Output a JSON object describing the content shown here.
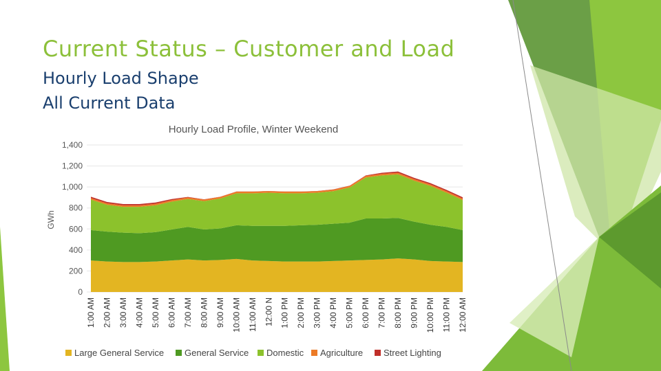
{
  "slide": {
    "title": "Current Status – Customer and Load",
    "subtitle_line1": "Hourly Load Shape",
    "subtitle_line2": "All Current Data"
  },
  "colors": {
    "title": "#8cc03a",
    "subtitle": "#1a3f6e",
    "accent_dark": "#3a7d1e",
    "accent_mid": "#6aa84f",
    "accent_light": "#8cc63f"
  },
  "chart_data": {
    "type": "area",
    "stacked": true,
    "title": "Hourly Load Profile, Winter Weekend",
    "ylabel": "GWh",
    "xlabel": "",
    "ylim": [
      0,
      1400
    ],
    "yticks": [
      "0",
      "200",
      "400",
      "600",
      "800",
      "1,000",
      "1,200",
      "1,400"
    ],
    "grid": true,
    "legend_position": "bottom",
    "categories": [
      "1:00 AM",
      "2:00 AM",
      "3:00 AM",
      "4:00 AM",
      "5:00 AM",
      "6:00 AM",
      "7:00 AM",
      "8:00 AM",
      "9:00 AM",
      "10:00 AM",
      "11:00 AM",
      "12:00 N",
      "1:00 PM",
      "2:00 PM",
      "3:00 PM",
      "4:00 PM",
      "5:00 PM",
      "6:00 PM",
      "7:00 PM",
      "8:00 PM",
      "9:00 PM",
      "10:00 PM",
      "11:00 PM",
      "12:00 AM"
    ],
    "series": [
      {
        "name": "Large General Service",
        "color": "#e3b522",
        "values": [
          300,
          290,
          285,
          285,
          290,
          300,
          310,
          300,
          305,
          315,
          300,
          295,
          290,
          290,
          290,
          295,
          300,
          305,
          310,
          320,
          310,
          295,
          290,
          285
        ]
      },
      {
        "name": "General Service",
        "color": "#4f9a22",
        "values": [
          290,
          285,
          280,
          275,
          280,
          295,
          310,
          295,
          300,
          320,
          330,
          335,
          340,
          345,
          350,
          355,
          360,
          395,
          390,
          385,
          360,
          345,
          330,
          305
        ]
      },
      {
        "name": "Domestic",
        "color": "#8cc22c",
        "values": [
          290,
          255,
          245,
          250,
          255,
          265,
          265,
          270,
          285,
          305,
          310,
          315,
          310,
          305,
          305,
          310,
          335,
          390,
          410,
          415,
          390,
          370,
          325,
          285
        ]
      },
      {
        "name": "Agriculture",
        "color": "#ec7a26",
        "values": [
          15,
          15,
          15,
          15,
          15,
          15,
          15,
          15,
          15,
          15,
          15,
          15,
          15,
          15,
          15,
          15,
          15,
          15,
          15,
          15,
          15,
          15,
          15,
          15
        ]
      },
      {
        "name": "Street Lighting",
        "color": "#c0302a",
        "values": [
          12,
          12,
          12,
          12,
          12,
          10,
          5,
          2,
          2,
          2,
          2,
          2,
          2,
          2,
          2,
          2,
          2,
          5,
          10,
          12,
          12,
          12,
          12,
          12
        ]
      }
    ]
  }
}
